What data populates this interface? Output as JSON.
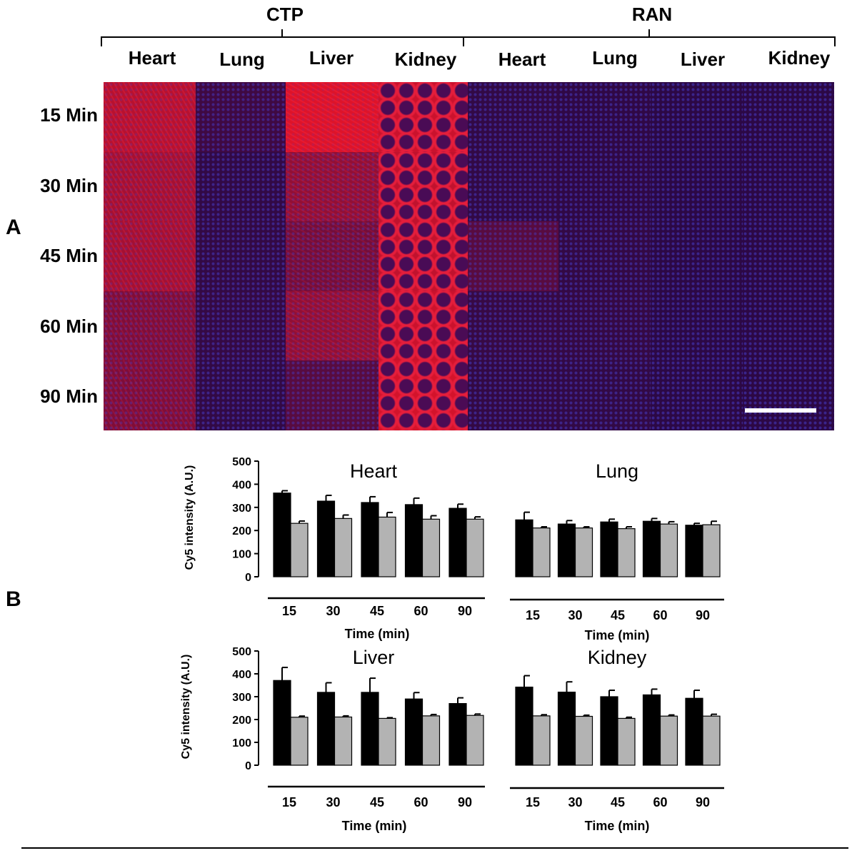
{
  "panel_a": {
    "label": "A",
    "groups": [
      "CTP",
      "RAN"
    ],
    "organs": [
      "Heart",
      "Lung",
      "Liver",
      "Kidney",
      "Heart",
      "Lung",
      "Liver",
      "Kidney"
    ],
    "times": [
      "15 Min",
      "30 Min",
      "45 Min",
      "60 Min",
      "90 Min"
    ],
    "colors": {
      "background": "#120530",
      "signal": "#e01530",
      "nuclei": "#3a2a9a"
    }
  },
  "panel_b": {
    "label": "B"
  },
  "chart_data": [
    {
      "type": "bar",
      "title": "Heart",
      "categories": [
        "15",
        "30",
        "45",
        "60",
        "90"
      ],
      "series": [
        {
          "name": "CTP",
          "values": [
            362,
            327,
            321,
            312,
            296
          ],
          "errors": [
            10,
            25,
            25,
            28,
            18
          ],
          "color": "#000000"
        },
        {
          "name": "RAN",
          "values": [
            231,
            252,
            258,
            249,
            249
          ],
          "errors": [
            10,
            15,
            20,
            15,
            10
          ],
          "color": "#b3b3b3"
        }
      ],
      "xlabel": "Time (min)",
      "ylabel": "Cy5 intensity (A.U.)",
      "ylim": [
        0,
        500
      ],
      "yticks": [
        "0",
        "100",
        "200",
        "300",
        "400",
        "500"
      ]
    },
    {
      "type": "bar",
      "title": "Lung",
      "categories": [
        "15",
        "30",
        "45",
        "60",
        "90"
      ],
      "series": [
        {
          "name": "CTP",
          "values": [
            246,
            228,
            237,
            240,
            223
          ],
          "errors": [
            33,
            15,
            12,
            12,
            8
          ],
          "color": "#000000"
        },
        {
          "name": "RAN",
          "values": [
            211,
            211,
            208,
            228,
            225
          ],
          "errors": [
            5,
            5,
            8,
            10,
            15
          ],
          "color": "#b3b3b3"
        }
      ],
      "xlabel": "Time (min)",
      "ylabel": "",
      "ylim": [
        0,
        500
      ],
      "yticks": []
    },
    {
      "type": "bar",
      "title": "Liver",
      "categories": [
        "15",
        "30",
        "45",
        "60",
        "90"
      ],
      "series": [
        {
          "name": "CTP",
          "values": [
            371,
            319,
            319,
            290,
            270
          ],
          "errors": [
            57,
            42,
            62,
            28,
            25
          ],
          "color": "#000000"
        },
        {
          "name": "RAN",
          "values": [
            210,
            211,
            205,
            216,
            218
          ],
          "errors": [
            5,
            5,
            3,
            6,
            6
          ],
          "color": "#b3b3b3"
        }
      ],
      "xlabel": "Time (min)",
      "ylabel": "Cy5 intensity (A.U.)",
      "ylim": [
        0,
        500
      ],
      "yticks": [
        "0",
        "100",
        "200",
        "300",
        "400",
        "500"
      ]
    },
    {
      "type": "bar",
      "title": "Kidney",
      "categories": [
        "15",
        "30",
        "45",
        "60",
        "90"
      ],
      "series": [
        {
          "name": "CTP",
          "values": [
            342,
            320,
            300,
            308,
            293
          ],
          "errors": [
            50,
            45,
            28,
            25,
            35
          ],
          "color": "#000000"
        },
        {
          "name": "RAN",
          "values": [
            216,
            214,
            205,
            215,
            215
          ],
          "errors": [
            5,
            5,
            5,
            5,
            8
          ],
          "color": "#b3b3b3"
        }
      ],
      "xlabel": "Time (min)",
      "ylabel": "",
      "ylim": [
        0,
        500
      ],
      "yticks": []
    }
  ]
}
